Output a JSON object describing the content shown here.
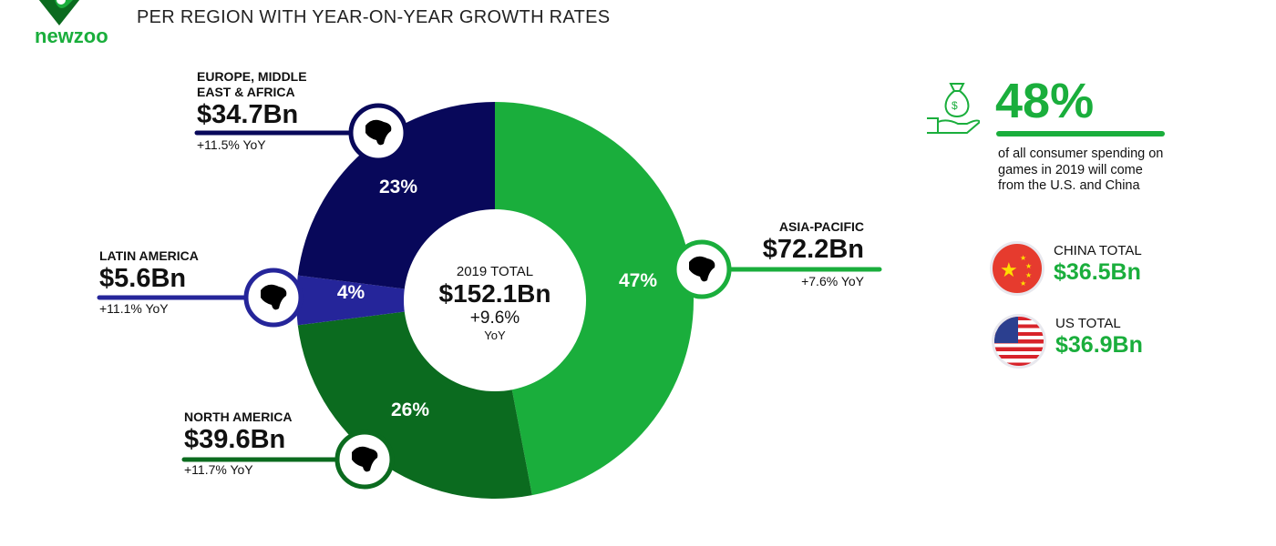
{
  "header": {
    "logo": "newzoo",
    "subtitle": "PER REGION WITH YEAR-ON-YEAR GROWTH RATES"
  },
  "chart_data": {
    "type": "pie",
    "title": "PER REGION WITH YEAR-ON-YEAR GROWTH RATES",
    "center": {
      "label": "2019 TOTAL",
      "value": "$152.1Bn",
      "growth": "+9.6%",
      "growth_unit": "YoY"
    },
    "slices": [
      {
        "name": "ASIA-PACIFIC",
        "percent": 47,
        "pct_label": "47%",
        "value": "$72.2Bn",
        "yoy": "+7.6% YoY",
        "color": "#1aae3c"
      },
      {
        "name": "NORTH AMERICA",
        "percent": 26,
        "pct_label": "26%",
        "value": "$39.6Bn",
        "yoy": "+11.7% YoY",
        "color": "#0b6b1f"
      },
      {
        "name": "LATIN AMERICA",
        "percent": 4,
        "pct_label": "4%",
        "value": "$5.6Bn",
        "yoy": "+11.1% YoY",
        "color": "#25259a"
      },
      {
        "name": "EUROPE, MIDDLE EAST & AFRICA",
        "percent": 23,
        "pct_label": "23%",
        "value": "$34.7Bn",
        "yoy": "+11.5% YoY",
        "color": "#08085a"
      }
    ]
  },
  "side": {
    "stat": "48%",
    "desc": "of all consumer spending on games in 2019 will come from the U.S. and China",
    "china_title": "CHINA TOTAL",
    "china_value": "$36.5Bn",
    "us_title": "US TOTAL",
    "us_value": "$36.9Bn",
    "accent": "#1aae3c"
  }
}
